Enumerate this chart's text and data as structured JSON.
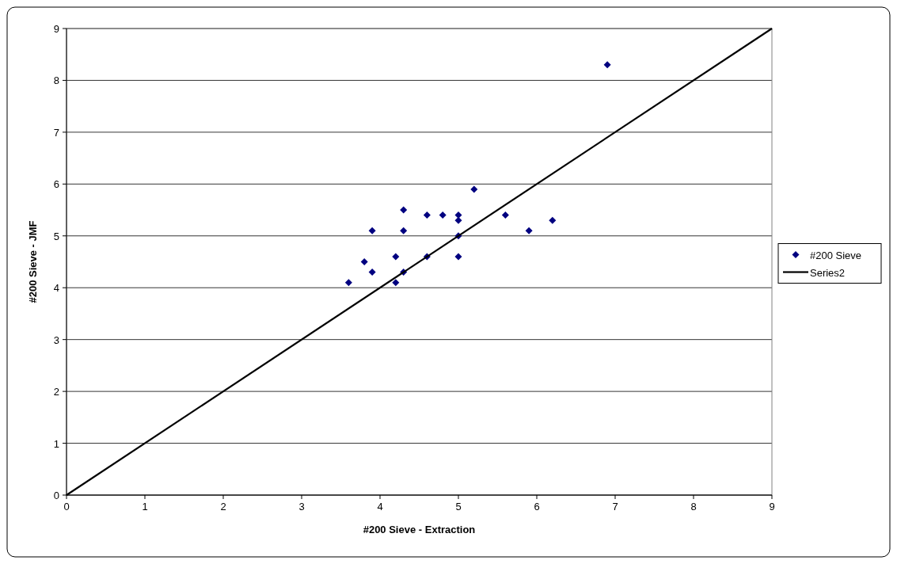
{
  "chart_data": {
    "type": "scatter",
    "xlabel": "#200 Sieve - Extraction",
    "ylabel": "#200 Sieve - JMF",
    "xlim": [
      0,
      9
    ],
    "ylim": [
      0,
      9
    ],
    "xticks": [
      0,
      1,
      2,
      3,
      4,
      5,
      6,
      7,
      8,
      9
    ],
    "yticks": [
      0,
      1,
      2,
      3,
      4,
      5,
      6,
      7,
      8,
      9
    ],
    "grid": "y",
    "legend": "right",
    "marker": "diamond",
    "series": [
      {
        "name": "#200 Sieve",
        "color": "#000080",
        "x": [
          3.6,
          3.8,
          3.9,
          3.9,
          4.2,
          4.2,
          4.3,
          4.3,
          4.3,
          4.6,
          4.6,
          4.8,
          5.0,
          5.0,
          5.0,
          5.0,
          5.2,
          5.6,
          5.9,
          6.2,
          6.9
        ],
        "values": [
          4.1,
          4.5,
          5.1,
          4.3,
          4.6,
          4.1,
          5.5,
          5.1,
          4.3,
          5.4,
          4.6,
          5.4,
          5.4,
          5.3,
          5.0,
          4.6,
          5.9,
          5.4,
          5.1,
          5.3,
          8.3
        ]
      },
      {
        "name": "Series2",
        "type": "line",
        "color": "#000000",
        "marker": "none",
        "x": [
          0,
          9
        ],
        "values": [
          0,
          9
        ]
      }
    ]
  }
}
